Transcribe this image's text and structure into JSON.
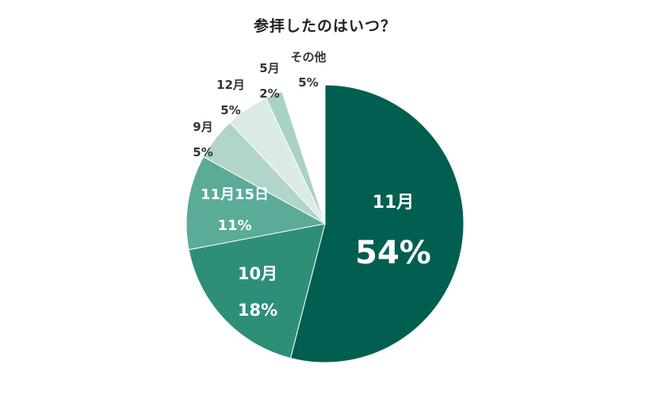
{
  "chart_data": {
    "type": "pie",
    "title": "参拝したのはいつ？",
    "slices": [
      {
        "label": "11月",
        "value_label": "54%",
        "value": 54,
        "color": "#005f50",
        "text_color": "#ffffff"
      },
      {
        "label": "10月",
        "value_label": "18%",
        "value": 18,
        "color": "#2e8f79",
        "text_color": "#ffffff"
      },
      {
        "label": "11月15日",
        "value_label": "11%",
        "value": 11,
        "color": "#5aab97",
        "text_color": "#ffffff"
      },
      {
        "label": "9月",
        "value_label": "5%",
        "value": 5,
        "color": "#b1d5cb",
        "text_color": "#333333"
      },
      {
        "label": "12月",
        "value_label": "5%",
        "value": 5,
        "color": "#dcebe6",
        "text_color": "#333333"
      },
      {
        "label": "5月",
        "value_label": "2%",
        "value": 2,
        "color": "#a9d2c6",
        "text_color": "#333333"
      },
      {
        "label": "その他",
        "value_label": "5%",
        "value": 5,
        "color": "#ffffff",
        "text_color": "#333333"
      }
    ]
  }
}
